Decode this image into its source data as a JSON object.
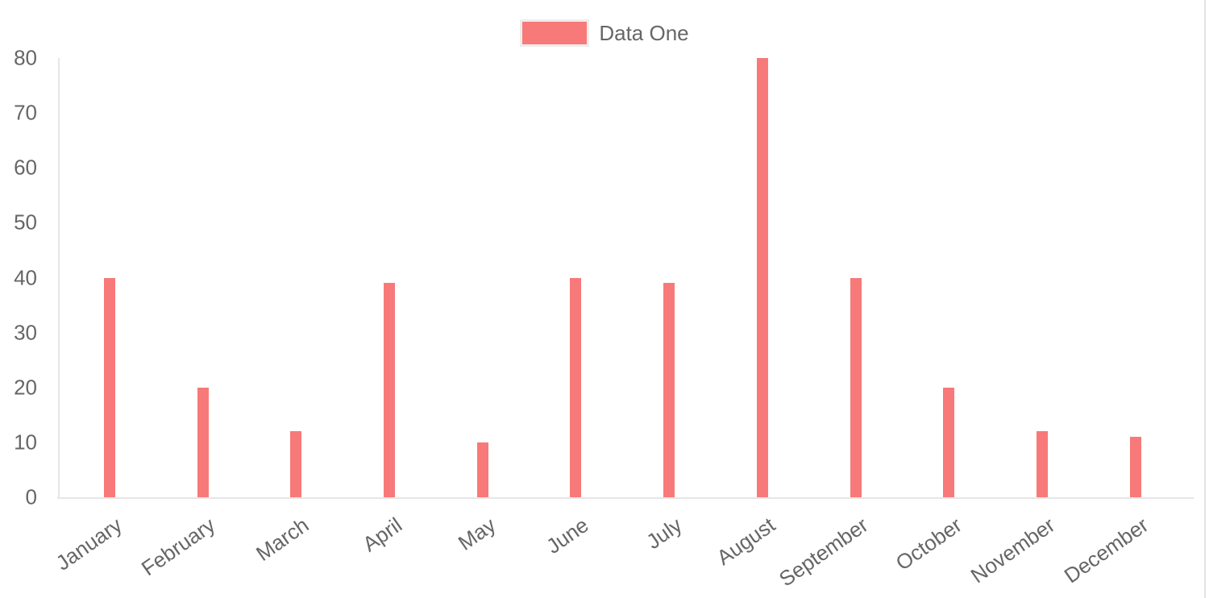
{
  "legend": {
    "items": [
      {
        "label": "Data One",
        "color": "#f87979"
      }
    ],
    "position": "top"
  },
  "chart_data": {
    "type": "bar",
    "title": "",
    "xlabel": "",
    "ylabel": "",
    "categories": [
      "January",
      "February",
      "March",
      "April",
      "May",
      "June",
      "July",
      "August",
      "September",
      "October",
      "November",
      "December"
    ],
    "series": [
      {
        "name": "Data One",
        "color": "#f87979",
        "values": [
          40,
          20,
          12,
          39,
          10,
          40,
          39,
          80,
          40,
          20,
          12,
          11
        ]
      }
    ],
    "ylim": [
      0,
      80
    ],
    "yticks": [
      0,
      10,
      20,
      30,
      40,
      50,
      60,
      70,
      80
    ],
    "grid": false,
    "legend_position": "top",
    "x_label_rotation_deg": -35,
    "axis_color": "#e6e6e6",
    "text_color": "#666666",
    "background": "#ffffff"
  }
}
